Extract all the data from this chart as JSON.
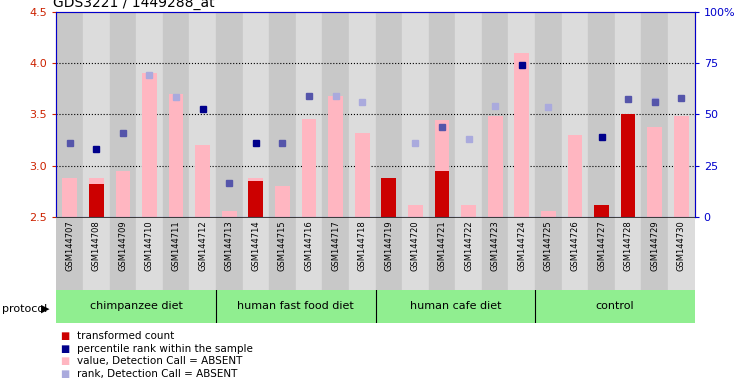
{
  "title": "GDS3221 / 1449288_at",
  "samples": [
    "GSM144707",
    "GSM144708",
    "GSM144709",
    "GSM144710",
    "GSM144711",
    "GSM144712",
    "GSM144713",
    "GSM144714",
    "GSM144715",
    "GSM144716",
    "GSM144717",
    "GSM144718",
    "GSM144719",
    "GSM144720",
    "GSM144721",
    "GSM144722",
    "GSM144723",
    "GSM144724",
    "GSM144725",
    "GSM144726",
    "GSM144727",
    "GSM144728",
    "GSM144729",
    "GSM144730"
  ],
  "pink_bars": [
    2.88,
    2.88,
    2.95,
    3.9,
    3.7,
    3.2,
    2.56,
    2.88,
    2.8,
    3.45,
    3.68,
    3.32,
    2.88,
    2.62,
    3.44,
    2.62,
    3.48,
    4.1,
    2.56,
    3.3,
    2.6,
    3.5,
    3.38,
    3.48
  ],
  "red_bars": [
    null,
    2.82,
    null,
    null,
    null,
    null,
    null,
    2.85,
    null,
    null,
    null,
    null,
    2.88,
    null,
    2.95,
    null,
    null,
    null,
    null,
    null,
    2.62,
    3.5,
    null,
    null
  ],
  "blue_squares": [
    3.22,
    3.16,
    3.32,
    null,
    null,
    3.55,
    2.83,
    3.22,
    3.22,
    3.68,
    null,
    null,
    null,
    null,
    3.38,
    null,
    null,
    3.98,
    null,
    null,
    3.28,
    3.65,
    3.62,
    3.66
  ],
  "light_blue_squares": [
    null,
    null,
    null,
    3.88,
    3.67,
    null,
    null,
    null,
    null,
    null,
    3.68,
    3.62,
    null,
    3.22,
    null,
    3.26,
    3.58,
    null,
    3.57,
    null,
    null,
    null,
    3.63,
    null
  ],
  "dark_blue_indices": [
    1,
    5,
    7,
    15,
    17,
    20
  ],
  "groups": [
    {
      "label": "chimpanzee diet",
      "start": 0,
      "end": 6
    },
    {
      "label": "human fast food diet",
      "start": 6,
      "end": 12
    },
    {
      "label": "human cafe diet",
      "start": 12,
      "end": 18
    },
    {
      "label": "control",
      "start": 18,
      "end": 24
    }
  ],
  "ylim_left": [
    2.5,
    4.5
  ],
  "ylim_right": [
    0,
    100
  ],
  "yticks_left": [
    2.5,
    3.0,
    3.5,
    4.0,
    4.5
  ],
  "yticks_right": [
    0,
    25,
    50,
    75,
    100
  ],
  "ytick_right_labels": [
    "0",
    "25",
    "50",
    "75",
    "100%"
  ],
  "left_axis_color": "#CC2200",
  "right_axis_color": "#0000CC",
  "bar_bottom": 2.5,
  "pink_color": "#FFB6C1",
  "red_color": "#CC0000",
  "dark_blue_color": "#00008B",
  "light_blue_color": "#AAAADD",
  "reg_blue_color": "#5555AA",
  "bg_even": "#C8C8C8",
  "bg_odd": "#DCDCDC",
  "group_color": "#90EE90",
  "legend_items": [
    {
      "color": "#CC0000",
      "label": "transformed count"
    },
    {
      "color": "#00008B",
      "label": "percentile rank within the sample"
    },
    {
      "color": "#FFB6C1",
      "label": "value, Detection Call = ABSENT"
    },
    {
      "color": "#AAAADD",
      "label": "rank, Detection Call = ABSENT"
    }
  ],
  "grid_lines": [
    3.0,
    3.5,
    4.0
  ]
}
